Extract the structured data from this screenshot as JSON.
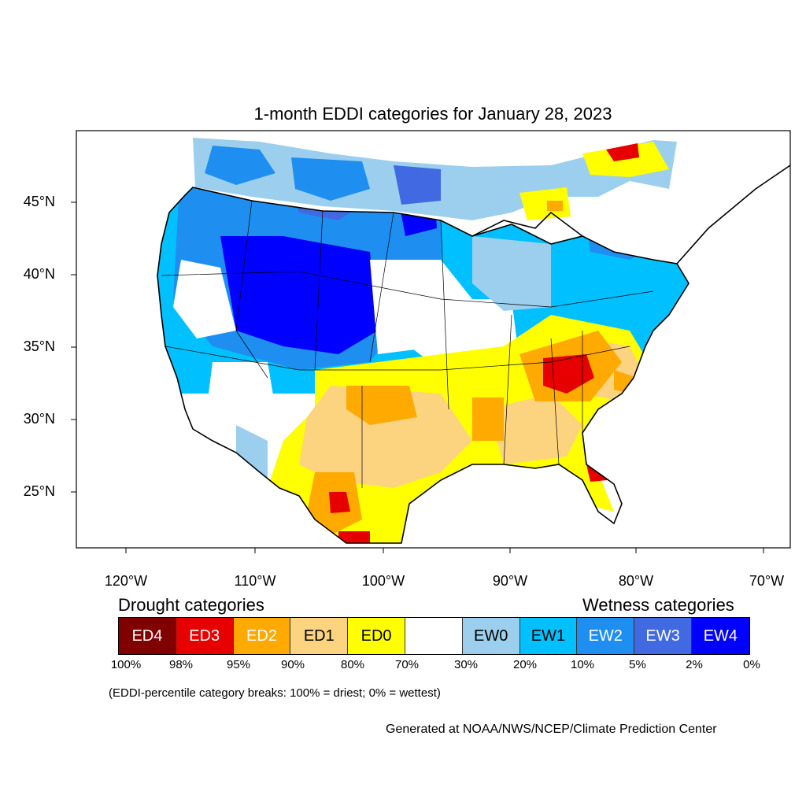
{
  "title": "1-month EDDI categories for January 28, 2023",
  "latitude_labels": [
    "45°N",
    "40°N",
    "35°N",
    "30°N",
    "25°N"
  ],
  "longitude_labels": [
    "120°W",
    "110°W",
    "100°W",
    "90°W",
    "80°W",
    "70°W"
  ],
  "legend": {
    "drought_heading": "Drought categories",
    "wetness_heading": "Wetness categories",
    "categories": [
      {
        "label": "ED4",
        "color": "#800000",
        "text_color": "#ffffff"
      },
      {
        "label": "ED3",
        "color": "#e60000",
        "text_color": "#ffffff"
      },
      {
        "label": "ED2",
        "color": "#ffaa00",
        "text_color": "#ffffff"
      },
      {
        "label": "ED1",
        "color": "#fcd37f",
        "text_color": "#000000"
      },
      {
        "label": "ED0",
        "color": "#ffff00",
        "text_color": "#000000"
      },
      {
        "label": "",
        "color": "#ffffff",
        "text_color": "#000000"
      },
      {
        "label": "EW0",
        "color": "#9ccfee",
        "text_color": "#000000"
      },
      {
        "label": "EW1",
        "color": "#00c0ff",
        "text_color": "#000000"
      },
      {
        "label": "EW2",
        "color": "#1e8ff0",
        "text_color": "#ffffff"
      },
      {
        "label": "EW3",
        "color": "#4169e1",
        "text_color": "#ffffff"
      },
      {
        "label": "EW4",
        "color": "#0000ff",
        "text_color": "#ffffff"
      }
    ],
    "breaks": [
      "100%",
      "98%",
      "95%",
      "90%",
      "80%",
      "70%",
      "30%",
      "20%",
      "10%",
      "5%",
      "2%",
      "0%"
    ]
  },
  "note": "(EDDI-percentile category breaks: 100% = driest; 0% = wettest)",
  "credit": "Generated at NOAA/NWS/NCEP/Climate Prediction Center"
}
